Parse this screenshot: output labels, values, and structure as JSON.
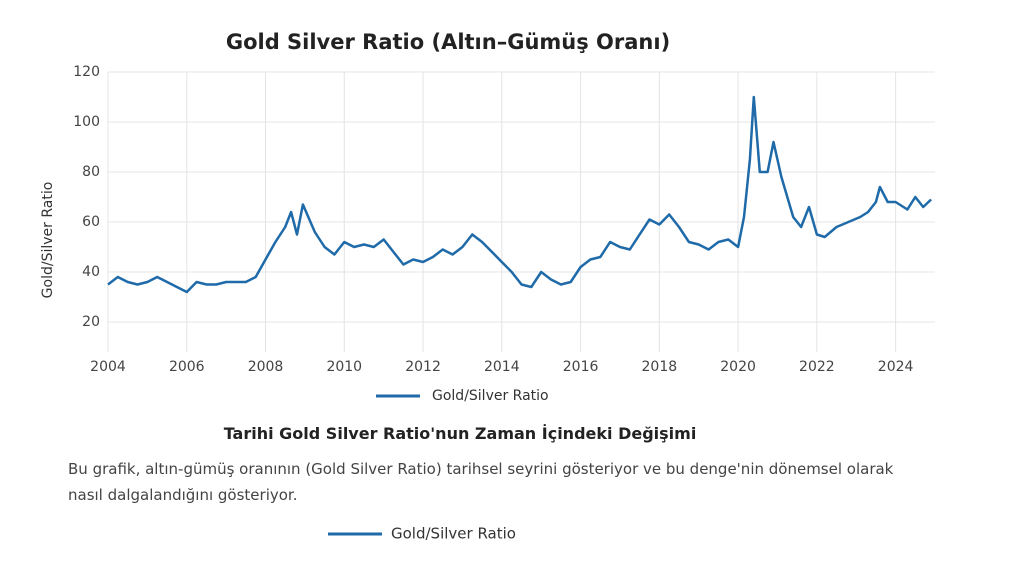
{
  "chart_data": {
    "type": "line",
    "title": "Gold Silver Ratio (Altın–Gümüş Oranı)",
    "y_label": "Gold/Silver Ratio",
    "x": [
      2004.0,
      2004.25,
      2004.5,
      2004.75,
      2005.0,
      2005.25,
      2005.5,
      2005.75,
      2006.0,
      2006.25,
      2006.5,
      2006.75,
      2007.0,
      2007.25,
      2007.5,
      2007.75,
      2008.0,
      2008.25,
      2008.5,
      2008.65,
      2008.8,
      2008.95,
      2009.25,
      2009.5,
      2009.75,
      2010.0,
      2010.25,
      2010.5,
      2010.75,
      2011.0,
      2011.25,
      2011.5,
      2011.75,
      2012.0,
      2012.25,
      2012.5,
      2012.75,
      2013.0,
      2013.25,
      2013.5,
      2013.75,
      2014.0,
      2014.25,
      2014.5,
      2014.75,
      2015.0,
      2015.25,
      2015.5,
      2015.75,
      2016.0,
      2016.25,
      2016.5,
      2016.75,
      2017.0,
      2017.25,
      2017.5,
      2017.75,
      2018.0,
      2018.25,
      2018.5,
      2018.75,
      2019.0,
      2019.25,
      2019.5,
      2019.75,
      2020.0,
      2020.15,
      2020.3,
      2020.4,
      2020.55,
      2020.75,
      2020.9,
      2021.1,
      2021.4,
      2021.6,
      2021.8,
      2022.0,
      2022.2,
      2022.5,
      2022.8,
      2023.1,
      2023.3,
      2023.5,
      2023.6,
      2023.8,
      2024.0,
      2024.3,
      2024.5,
      2024.7,
      2024.9
    ],
    "series": [
      {
        "name": "Gold/Silver Ratio",
        "color": "#1f6aa8",
        "values": [
          35,
          38,
          36,
          35,
          36,
          38,
          36,
          34,
          32,
          36,
          35,
          35,
          36,
          36,
          36,
          38,
          45,
          52,
          58,
          64,
          55,
          67,
          56,
          50,
          47,
          52,
          50,
          51,
          50,
          53,
          48,
          43,
          45,
          44,
          46,
          49,
          47,
          50,
          55,
          52,
          48,
          44,
          40,
          35,
          34,
          40,
          37,
          35,
          36,
          42,
          45,
          46,
          52,
          50,
          49,
          55,
          61,
          59,
          63,
          58,
          52,
          51,
          49,
          52,
          53,
          50,
          62,
          85,
          110,
          80,
          80,
          92,
          78,
          62,
          58,
          66,
          55,
          54,
          58,
          60,
          62,
          64,
          68,
          74,
          68,
          68,
          65,
          70,
          66,
          69
        ]
      }
    ],
    "xlim": [
      2004,
      2025
    ],
    "ylim": [
      8,
      120
    ],
    "xticks": [
      2004,
      2006,
      2008,
      2010,
      2012,
      2014,
      2016,
      2018,
      2020,
      2022,
      2024
    ],
    "yticks": [
      20,
      40,
      60,
      80,
      100,
      120
    ],
    "grid": true
  },
  "section": {
    "heading": "Tarihi Gold Silver Ratio'nun Zaman İçindeki Değişimi",
    "description": "Bu grafik, altın-gümüş oranının (Gold Silver Ratio) tarihsel seyrini gösteriyor ve bu denge'nin dönemsel olarak nasıl dalgalandığını gösteriyor."
  }
}
